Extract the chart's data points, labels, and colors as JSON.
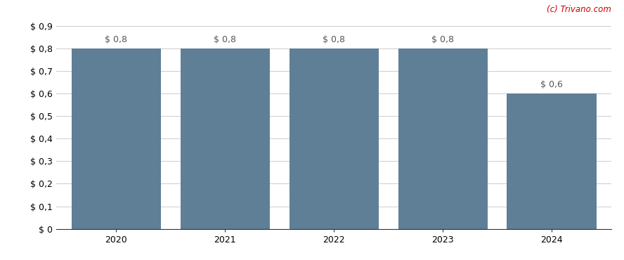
{
  "categories": [
    2020,
    2021,
    2022,
    2023,
    2024
  ],
  "values": [
    0.8,
    0.8,
    0.8,
    0.8,
    0.6
  ],
  "bar_color": "#5f7f96",
  "bar_labels": [
    "$ 0,8",
    "$ 0,8",
    "$ 0,8",
    "$ 0,8",
    "$ 0,6"
  ],
  "ytick_labels": [
    "$ 0",
    "$ 0,1",
    "$ 0,2",
    "$ 0,3",
    "$ 0,4",
    "$ 0,5",
    "$ 0,6",
    "$ 0,7",
    "$ 0,8",
    "$ 0,9"
  ],
  "ytick_values": [
    0,
    0.1,
    0.2,
    0.3,
    0.4,
    0.5,
    0.6,
    0.7,
    0.8,
    0.9
  ],
  "ylim": [
    0,
    0.9
  ],
  "watermark": "(c) Trivano.com",
  "watermark_color": "#cc0000",
  "background_color": "#ffffff",
  "bar_label_color": "#555555",
  "bar_label_fontsize": 9,
  "axis_fontsize": 9,
  "grid_color": "#cccccc"
}
